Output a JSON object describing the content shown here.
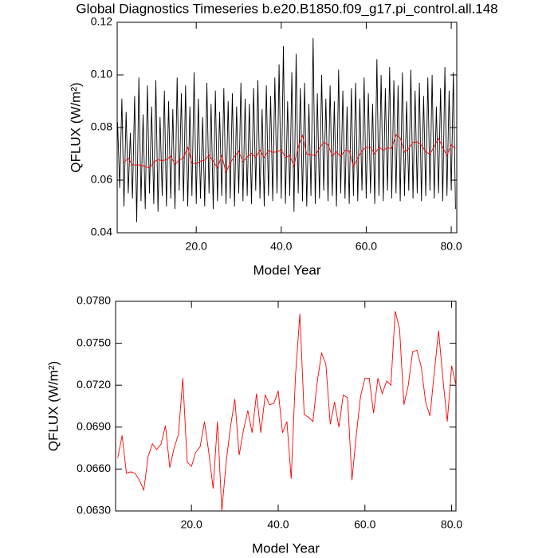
{
  "chart_data": [
    {
      "type": "line",
      "title": "Global Diagnostics Timeseries b.e20.B1850.f09_g17.pi_control.all.148",
      "x_label": "Model Year",
      "y_label": "QFLUX (W/m²)",
      "xlim": [
        1.4,
        81.3
      ],
      "ylim": [
        0.04,
        0.12
      ],
      "xticks": [
        {
          "value": 20,
          "label": "20.0"
        },
        {
          "value": 40,
          "label": "40.0"
        },
        {
          "value": 60,
          "label": "60.0"
        },
        {
          "value": 80,
          "label": "80.0"
        }
      ],
      "yticks": [
        0.04,
        0.06,
        0.08,
        {
          "value": 0.1,
          "label": "0.10"
        },
        0.12
      ],
      "series": [
        {
          "color": "#000000",
          "x": [
            1.5,
            2,
            2.5,
            3,
            3.5,
            4,
            4.5,
            5,
            5.5,
            6,
            6.5,
            7,
            7.5,
            8,
            8.5,
            9,
            9.5,
            10,
            10.5,
            11,
            11.5,
            12,
            12.5,
            13,
            13.5,
            14,
            14.5,
            15,
            15.5,
            16,
            16.5,
            17,
            17.5,
            18,
            18.5,
            19,
            19.5,
            20,
            20.5,
            21,
            21.5,
            22,
            22.5,
            23,
            23.5,
            24,
            24.5,
            25,
            25.5,
            26,
            26.5,
            27,
            27.5,
            28,
            28.5,
            29,
            29.5,
            30,
            30.5,
            31,
            31.5,
            32,
            32.5,
            33,
            33.5,
            34,
            34.5,
            35,
            35.5,
            36,
            36.5,
            37,
            37.5,
            38,
            38.5,
            39,
            39.5,
            40,
            40.5,
            41,
            41.5,
            42,
            42.5,
            43,
            43.5,
            44,
            44.5,
            45,
            45.5,
            46,
            46.5,
            47,
            47.5,
            48,
            48.5,
            49,
            49.5,
            50,
            50.5,
            51,
            51.5,
            52,
            52.5,
            53,
            53.5,
            54,
            54.5,
            55,
            55.5,
            56,
            56.5,
            57,
            57.5,
            58,
            58.5,
            59,
            59.5,
            60,
            60.5,
            61,
            61.5,
            62,
            62.5,
            63,
            63.5,
            64,
            64.5,
            65,
            65.5,
            66,
            66.5,
            67,
            67.5,
            68,
            68.5,
            69,
            69.5,
            70,
            70.5,
            71,
            71.5,
            72,
            72.5,
            73,
            73.5,
            74,
            74.5,
            75,
            75.5,
            76,
            76.5,
            77,
            77.5,
            78,
            78.5,
            79,
            79.5,
            80,
            80.5,
            81
          ],
          "values": [
            0.082,
            0.057,
            0.091,
            0.05,
            0.086,
            0.055,
            0.078,
            0.053,
            0.092,
            0.044,
            0.099,
            0.052,
            0.085,
            0.049,
            0.096,
            0.055,
            0.088,
            0.051,
            0.098,
            0.048,
            0.084,
            0.054,
            0.094,
            0.05,
            0.09,
            0.053,
            0.087,
            0.049,
            0.099,
            0.056,
            0.093,
            0.052,
            0.096,
            0.05,
            0.088,
            0.054,
            0.101,
            0.051,
            0.091,
            0.053,
            0.084,
            0.05,
            0.097,
            0.055,
            0.089,
            0.049,
            0.094,
            0.052,
            0.086,
            0.054,
            0.095,
            0.051,
            0.09,
            0.053,
            0.093,
            0.05,
            0.088,
            0.055,
            0.097,
            0.052,
            0.091,
            0.054,
            0.089,
            0.051,
            0.095,
            0.056,
            0.098,
            0.053,
            0.087,
            0.05,
            0.096,
            0.054,
            0.092,
            0.052,
            0.099,
            0.055,
            0.104,
            0.053,
            0.111,
            0.051,
            0.09,
            0.054,
            0.101,
            0.048,
            0.108,
            0.055,
            0.095,
            0.052,
            0.097,
            0.05,
            0.089,
            0.054,
            0.114,
            0.051,
            0.093,
            0.053,
            0.1,
            0.056,
            0.091,
            0.052,
            0.096,
            0.054,
            0.09,
            0.05,
            0.102,
            0.055,
            0.094,
            0.053,
            0.088,
            0.051,
            0.095,
            0.054,
            0.097,
            0.052,
            0.091,
            0.056,
            0.099,
            0.053,
            0.093,
            0.055,
            0.089,
            0.051,
            0.106,
            0.054,
            0.1,
            0.052,
            0.095,
            0.056,
            0.103,
            0.053,
            0.098,
            0.055,
            0.096,
            0.052,
            0.101,
            0.054,
            0.09,
            0.056,
            0.102,
            0.053,
            0.094,
            0.055,
            0.097,
            0.052,
            0.092,
            0.054,
            0.099,
            0.056,
            0.1,
            0.053,
            0.088,
            0.055,
            0.095,
            0.052,
            0.103,
            0.054,
            0.094,
            0.056,
            0.101,
            0.049
          ]
        },
        {
          "color": "#ff0000",
          "x": [
            3,
            4,
            5,
            6,
            7,
            8,
            9,
            10,
            11,
            12,
            13,
            14,
            15,
            16,
            17,
            18,
            19,
            20,
            21,
            22,
            23,
            24,
            25,
            26,
            27,
            28,
            29,
            30,
            31,
            32,
            33,
            34,
            35,
            36,
            37,
            38,
            39,
            40,
            41,
            42,
            43,
            44,
            45,
            46,
            47,
            48,
            49,
            50,
            51,
            52,
            53,
            54,
            55,
            56,
            57,
            58,
            59,
            60,
            61,
            62,
            63,
            64,
            65,
            66,
            67,
            68,
            69,
            70,
            71,
            72,
            73,
            74,
            75,
            76,
            77,
            78,
            79,
            80,
            81
          ],
          "values": [
            0.0668,
            0.0684,
            0.0657,
            0.0658,
            0.0657,
            0.0652,
            0.0645,
            0.0669,
            0.0678,
            0.0674,
            0.0678,
            0.0691,
            0.0661,
            0.0675,
            0.0685,
            0.0725,
            0.0665,
            0.0662,
            0.0672,
            0.0676,
            0.0694,
            0.0672,
            0.0646,
            0.0694,
            0.063,
            0.0665,
            0.069,
            0.071,
            0.067,
            0.0688,
            0.0702,
            0.0686,
            0.0714,
            0.0686,
            0.0713,
            0.0706,
            0.0707,
            0.0716,
            0.0686,
            0.0694,
            0.0653,
            0.0727,
            0.0771,
            0.0699,
            0.0697,
            0.0694,
            0.0722,
            0.0743,
            0.0735,
            0.0692,
            0.0708,
            0.069,
            0.0713,
            0.0711,
            0.0652,
            0.0684,
            0.0712,
            0.0725,
            0.0725,
            0.07,
            0.0725,
            0.0714,
            0.0723,
            0.072,
            0.0773,
            0.076,
            0.0706,
            0.072,
            0.0744,
            0.0745,
            0.0733,
            0.0708,
            0.0698,
            0.0729,
            0.0759,
            0.0724,
            0.0694,
            0.0734,
            0.072
          ]
        }
      ]
    },
    {
      "type": "line",
      "x_label": "Model Year",
      "y_label": "QFLUX (W/m²)",
      "xlim": [
        2.5,
        81
      ],
      "ylim": [
        0.063,
        0.078
      ],
      "xticks": [
        {
          "value": 20,
          "label": "20.0"
        },
        {
          "value": 40,
          "label": "40.0"
        },
        {
          "value": 60,
          "label": "60.0"
        },
        {
          "value": 80,
          "label": "80.0"
        }
      ],
      "yticks": [
        {
          "value": 0.063,
          "label": "0.0630"
        },
        {
          "value": 0.066,
          "label": "0.0660"
        },
        {
          "value": 0.069,
          "label": "0.0690"
        },
        {
          "value": 0.072,
          "label": "0.0720"
        },
        {
          "value": 0.075,
          "label": "0.0750"
        },
        {
          "value": 0.078,
          "label": "0.0780"
        }
      ],
      "series": [
        {
          "color": "#ff0000",
          "x": [
            3,
            4,
            5,
            6,
            7,
            8,
            9,
            10,
            11,
            12,
            13,
            14,
            15,
            16,
            17,
            18,
            19,
            20,
            21,
            22,
            23,
            24,
            25,
            26,
            27,
            28,
            29,
            30,
            31,
            32,
            33,
            34,
            35,
            36,
            37,
            38,
            39,
            40,
            41,
            42,
            43,
            44,
            45,
            46,
            47,
            48,
            49,
            50,
            51,
            52,
            53,
            54,
            55,
            56,
            57,
            58,
            59,
            60,
            61,
            62,
            63,
            64,
            65,
            66,
            67,
            68,
            69,
            70,
            71,
            72,
            73,
            74,
            75,
            76,
            77,
            78,
            79,
            80,
            81
          ],
          "values": [
            0.0668,
            0.0684,
            0.0657,
            0.0658,
            0.0657,
            0.0652,
            0.0645,
            0.0669,
            0.0678,
            0.0674,
            0.0678,
            0.0691,
            0.0661,
            0.0675,
            0.0685,
            0.0725,
            0.0665,
            0.0662,
            0.0672,
            0.0676,
            0.0694,
            0.0672,
            0.0646,
            0.0694,
            0.063,
            0.0665,
            0.069,
            0.071,
            0.067,
            0.0688,
            0.0702,
            0.0686,
            0.0714,
            0.0686,
            0.0713,
            0.0706,
            0.0707,
            0.0716,
            0.0686,
            0.0694,
            0.0653,
            0.0727,
            0.0771,
            0.0699,
            0.0697,
            0.0694,
            0.0722,
            0.0743,
            0.0735,
            0.0692,
            0.0708,
            0.069,
            0.0713,
            0.0711,
            0.0652,
            0.0684,
            0.0712,
            0.0725,
            0.0725,
            0.07,
            0.0725,
            0.0714,
            0.0723,
            0.072,
            0.0773,
            0.076,
            0.0706,
            0.072,
            0.0744,
            0.0745,
            0.0733,
            0.0708,
            0.0698,
            0.0729,
            0.0759,
            0.0724,
            0.0694,
            0.0734,
            0.072
          ]
        }
      ]
    }
  ]
}
